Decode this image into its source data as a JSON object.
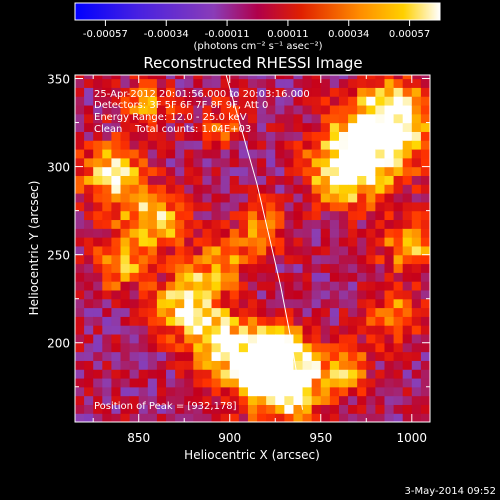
{
  "colorbar": {
    "ticks": [
      "-0.00057",
      "-0.00034",
      "-0.00011",
      "0.00011",
      "0.00034",
      "0.00057"
    ],
    "units": "(photons cm⁻² s⁻¹ asec⁻²)"
  },
  "chart_data": {
    "type": "heatmap",
    "title": "Reconstructed RHESSI Image",
    "xlabel": "Heliocentric X (arcsec)",
    "ylabel": "Heliocentric Y (arcsec)",
    "xlim": [
      815,
      1010
    ],
    "ylim": [
      155,
      352
    ],
    "xticks": [
      850,
      900,
      950,
      1000
    ],
    "yticks": [
      200,
      250,
      300,
      350
    ],
    "zlim": [
      -0.00057,
      0.00057
    ],
    "colormap": [
      "#0000ff",
      "#6a2bd8",
      "#8b3fb4",
      "#c4001c",
      "#ff3300",
      "#ff8c00",
      "#ffd700",
      "#ffffff"
    ],
    "peak": [
      932,
      178
    ],
    "limb_points": [
      [
        898,
        352
      ],
      [
        915,
        290
      ],
      [
        928,
        232
      ],
      [
        934,
        200
      ],
      [
        940,
        162
      ]
    ],
    "annotations": [
      "25-Apr-2012 20:01:56.000 to 20:03:16.000",
      "Detectors: 3F 5F 6F 7F 8F 9F, Att 0",
      "Energy Range: 12.0 - 25.0 keV",
      "Clean    Total counts: 1.04E+03"
    ],
    "peak_label": "Position of Peak = [932,178]"
  },
  "footer": {
    "date": "3-May-2014 09:52"
  }
}
